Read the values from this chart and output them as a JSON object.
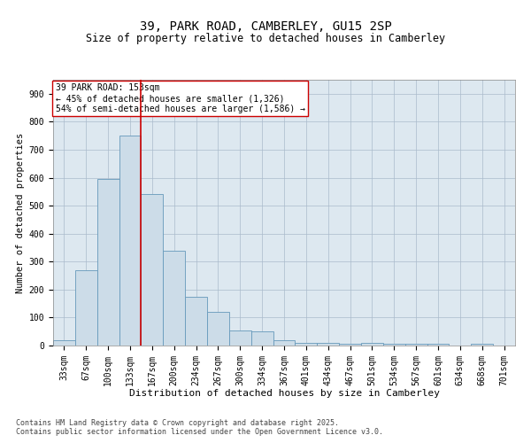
{
  "title1": "39, PARK ROAD, CAMBERLEY, GU15 2SP",
  "title2": "Size of property relative to detached houses in Camberley",
  "xlabel": "Distribution of detached houses by size in Camberley",
  "ylabel": "Number of detached properties",
  "categories": [
    "33sqm",
    "67sqm",
    "100sqm",
    "133sqm",
    "167sqm",
    "200sqm",
    "234sqm",
    "267sqm",
    "300sqm",
    "334sqm",
    "367sqm",
    "401sqm",
    "434sqm",
    "467sqm",
    "501sqm",
    "534sqm",
    "567sqm",
    "601sqm",
    "634sqm",
    "668sqm",
    "701sqm"
  ],
  "values": [
    20,
    270,
    595,
    750,
    540,
    340,
    175,
    120,
    55,
    50,
    20,
    10,
    10,
    5,
    10,
    5,
    5,
    5,
    0,
    5,
    0
  ],
  "bar_color": "#ccdce8",
  "bar_edge_color": "#6699bb",
  "vline_color": "#cc0000",
  "annotation_text": "39 PARK ROAD: 153sqm\n← 45% of detached houses are smaller (1,326)\n54% of semi-detached houses are larger (1,586) →",
  "annotation_box_color": "#ffffff",
  "annotation_box_edge": "#cc0000",
  "ylim": [
    0,
    950
  ],
  "yticks": [
    0,
    100,
    200,
    300,
    400,
    500,
    600,
    700,
    800,
    900
  ],
  "footer1": "Contains HM Land Registry data © Crown copyright and database right 2025.",
  "footer2": "Contains public sector information licensed under the Open Government Licence v3.0.",
  "bg_color": "#dde8f0",
  "fig_bg_color": "#ffffff",
  "title1_fontsize": 10,
  "title2_fontsize": 8.5,
  "xlabel_fontsize": 8,
  "ylabel_fontsize": 7.5,
  "tick_fontsize": 7,
  "annotation_fontsize": 7,
  "footer_fontsize": 6
}
